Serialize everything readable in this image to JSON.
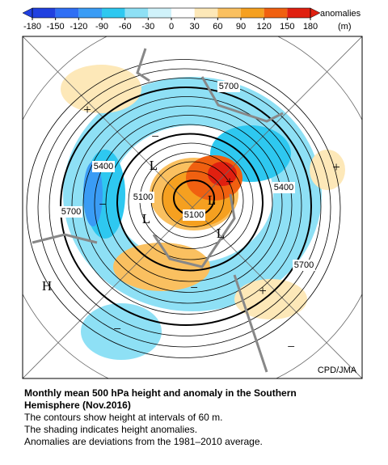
{
  "colorbar": {
    "ticks": [
      -180,
      -150,
      -120,
      -90,
      -60,
      -30,
      0,
      30,
      60,
      90,
      120,
      150,
      180
    ],
    "colors": [
      "#2040e0",
      "#2f6ff5",
      "#3a9cf5",
      "#2ec8f0",
      "#8ee0f5",
      "#d0f2fa",
      "#ffffff",
      "#fde8b8",
      "#fac060",
      "#f5a020",
      "#f06010",
      "#e02010"
    ],
    "label": "anomalies",
    "unit": "(m)"
  },
  "map": {
    "contour_labels": [
      "5700",
      "5400",
      "5400",
      "5700",
      "5100",
      "5100",
      "5700"
    ],
    "symbols": [
      "L",
      "L",
      "L",
      "L",
      "H",
      "+",
      "+",
      "+",
      "+",
      "−",
      "−",
      "−",
      "−",
      "−"
    ],
    "credit": "CPD/JMA"
  },
  "caption": {
    "title": [
      "Monthly mean 500 hPa height and anomaly in the Southern",
      "Hemisphere (Nov.2016)"
    ],
    "lines": [
      "The contours show height at intervals of 60 m.",
      "The shading indicates height anomalies.",
      "Anomalies are deviations from the 1981–2010 average."
    ]
  }
}
